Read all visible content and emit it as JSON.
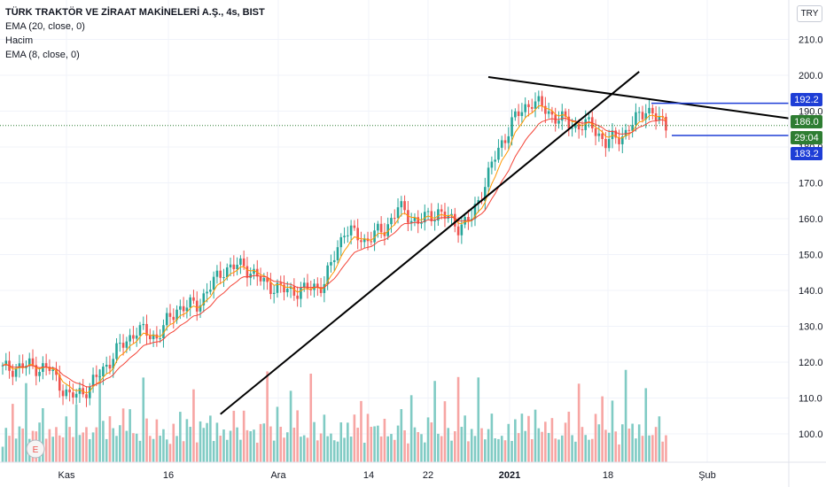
{
  "legend": {
    "title": "TÜRK TRAKTÖR VE ZİRAAT MAKİNELERİ A.Ş., 4s, BIST",
    "ema20": "EMA (20, close, 0)",
    "volume": "Hacim",
    "ema8": "EMA (8, close, 0)"
  },
  "currency": "TRY",
  "event_badge": "E",
  "colors": {
    "up": "#26a69a",
    "down": "#ef5350",
    "up_vol": "#80cbc4",
    "down_vol": "#f7a5a3",
    "ema8": "#ff9800",
    "ema20": "#f44336",
    "trend": "#000000",
    "price_tag": "#2e7d32",
    "level_tag": "#1e3ed6",
    "grid": "#f0f3fa"
  },
  "price_tags": {
    "resistance": "192.2",
    "last": "186.0",
    "countdown": "29:04",
    "support": "183.2"
  },
  "chart_data": {
    "type": "candlestick",
    "y_ticks": [
      "210.0",
      "200.0",
      "190.0",
      "180.0",
      "170.0",
      "160.0",
      "150.0",
      "140.0",
      "130.0",
      "120.0",
      "110.0",
      "100.0"
    ],
    "x_ticks": [
      "Kas",
      "16",
      "Ara",
      "14",
      "22",
      "2021",
      "18",
      "Şub"
    ],
    "ylim": [
      93,
      214
    ],
    "price_path": [
      [
        0,
        118
      ],
      [
        8,
        119
      ],
      [
        14,
        118
      ],
      [
        20,
        110
      ],
      [
        26,
        113
      ],
      [
        34,
        123
      ],
      [
        40,
        129
      ],
      [
        46,
        127
      ],
      [
        52,
        135
      ],
      [
        58,
        136
      ],
      [
        66,
        146
      ],
      [
        72,
        147
      ],
      [
        78,
        142
      ],
      [
        84,
        140
      ],
      [
        90,
        140
      ],
      [
        96,
        142
      ],
      [
        102,
        157
      ],
      [
        108,
        154
      ],
      [
        114,
        157
      ],
      [
        118,
        163
      ],
      [
        124,
        159
      ],
      [
        130,
        162
      ],
      [
        136,
        158
      ],
      [
        140,
        160
      ],
      [
        146,
        175
      ],
      [
        152,
        187
      ],
      [
        158,
        193
      ],
      [
        164,
        189
      ],
      [
        170,
        186
      ],
      [
        176,
        186
      ],
      [
        180,
        181
      ],
      [
        186,
        184
      ],
      [
        192,
        191
      ],
      [
        195,
        188
      ],
      [
        198,
        186
      ]
    ],
    "volume_levels": [
      0.15,
      0.35,
      0.2,
      0.6,
      0.25,
      0.45,
      0.3,
      0.8,
      0.2,
      0.5,
      0.3,
      0.35,
      0.55,
      0.25,
      0.4,
      0.2,
      0.3,
      0.25,
      0.35,
      0.5,
      0.3,
      0.2,
      0.85,
      0.3,
      0.25,
      0.3,
      0.2,
      0.45,
      0.35,
      0.95,
      0.4,
      0.25,
      0.6,
      0.3,
      0.2,
      0.4,
      0.95,
      0.3,
      0.5,
      0.25,
      0.35,
      0.2,
      0.9,
      0.4,
      0.25,
      0.3,
      0.45,
      0.2,
      0.3,
      0.25
    ],
    "series": [
      {
        "name": "EMA (8, close, 0)",
        "lag": 3
      },
      {
        "name": "EMA (20, close, 0)",
        "lag": 7
      }
    ],
    "annotations": {
      "rising_trendline": [
        [
          65,
          105.5
        ],
        [
          190,
          201
        ]
      ],
      "falling_trendline": [
        [
          155,
          199.5
        ],
        [
          205,
          188
        ]
      ],
      "resistance_level": 192.2,
      "support_level": 183.2
    }
  }
}
